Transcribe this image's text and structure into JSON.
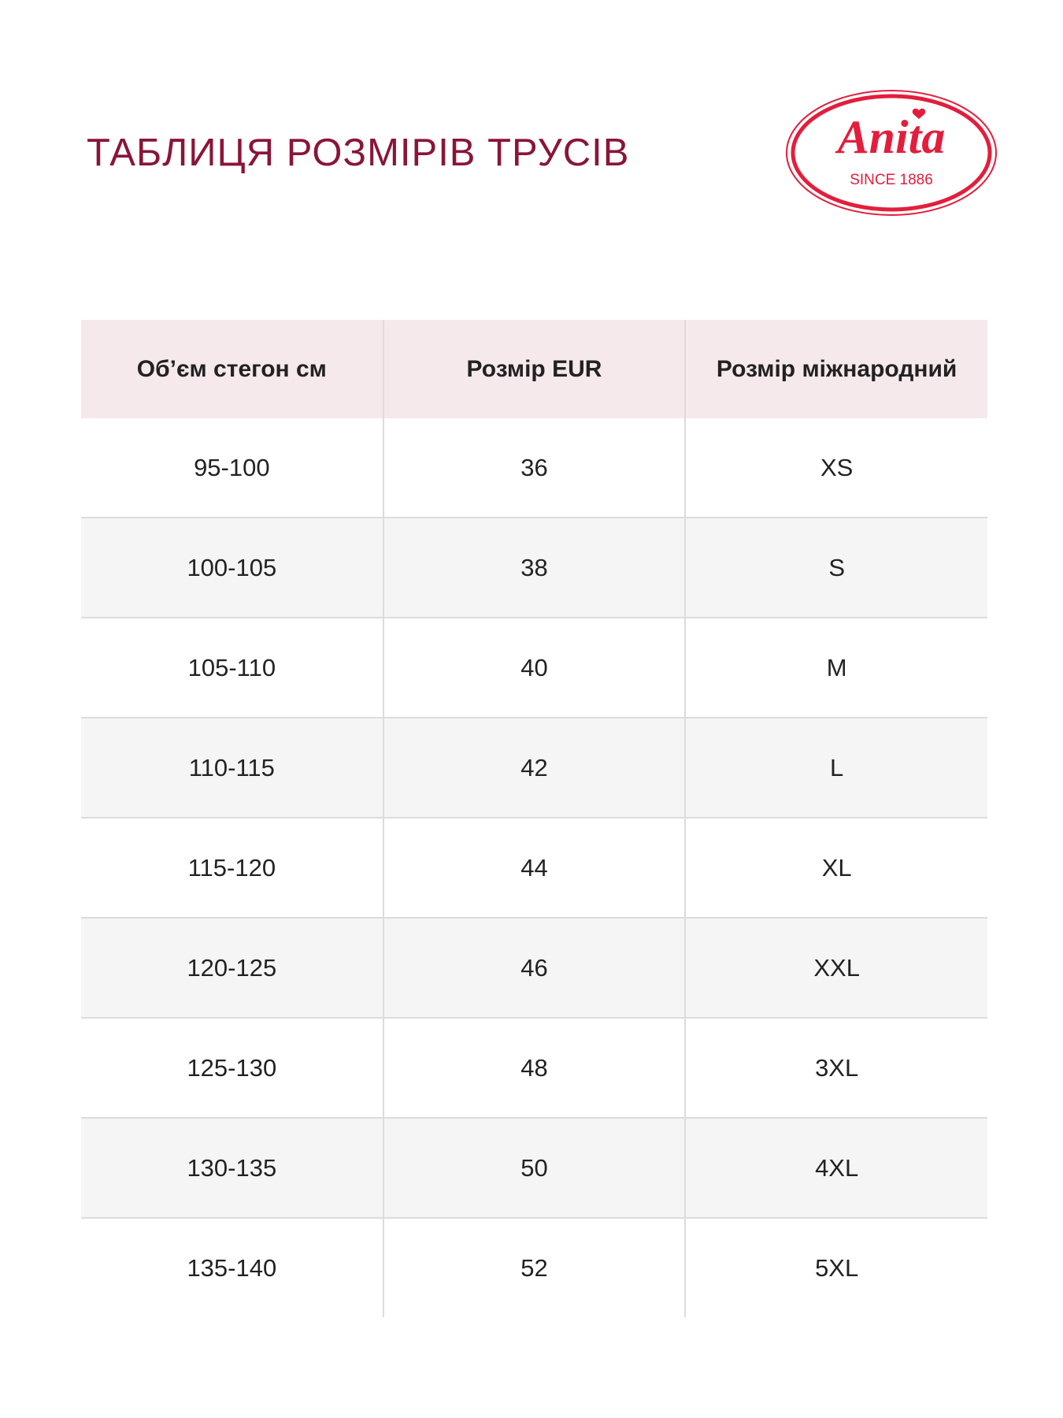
{
  "title": "ТАБЛИЦЯ РОЗМІРІВ ТРУСІВ",
  "logo": {
    "brand": "Anita",
    "tagline": "SINCE 1886",
    "color": "#e31e3c"
  },
  "table": {
    "headers": [
      "Об’єм стегон см",
      "Розмір EUR",
      "Розмір міжнародний"
    ],
    "rows": [
      [
        "95-100",
        "36",
        "XS"
      ],
      [
        "100-105",
        "38",
        "S"
      ],
      [
        "105-110",
        "40",
        "M"
      ],
      [
        "110-115",
        "42",
        "L"
      ],
      [
        "115-120",
        "44",
        "XL"
      ],
      [
        "120-125",
        "46",
        "XXL"
      ],
      [
        "125-130",
        "48",
        "3XL"
      ],
      [
        "130-135",
        "50",
        "4XL"
      ],
      [
        "135-140",
        "52",
        "5XL"
      ]
    ]
  }
}
